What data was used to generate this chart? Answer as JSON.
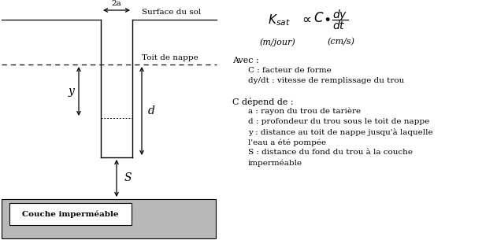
{
  "bg_color": "#ffffff",
  "gray_color": "#b8b8b8",
  "label_surface": "Surface du sol",
  "label_toit": "Toit de nappe",
  "label_couche": "Couche imperméable",
  "label_2a": "2a",
  "label_y": "y",
  "label_d": "d",
  "label_S": "S",
  "formula_unit_left": "(m/jour)",
  "formula_unit_right": "(cm/s)",
  "avec_text": "Avec :",
  "avec_c": "C : facteur de forme",
  "avec_dydt": "dy/dt : vitesse de remplissage du trou",
  "cdepend": "C dépend de :",
  "cdepend_a": "a : rayon du trou de tarière",
  "cdepend_d": "d : profondeur du trou sous le toit de nappe",
  "cdepend_y": "y : distance au toit de nappe jusqu'à laquelle",
  "cdepend_y2": "l'eau a été pompée",
  "cdepend_S": "S : distance du fond du trou à la couche",
  "cdepend_S2": "imperméable",
  "fig_w": 6.31,
  "fig_h": 3.05,
  "dpi": 100
}
